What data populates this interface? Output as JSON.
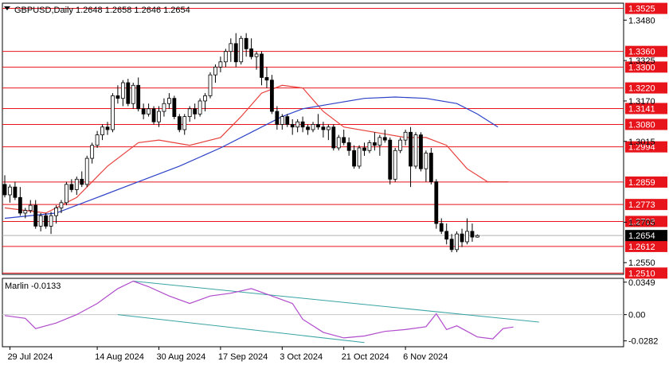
{
  "chart_data": {
    "type": "candlestick",
    "symbol_line": "GBPUSD,Daily  1.2648 1.2658 1.2646 1.2654",
    "current_price": 1.2654,
    "price_axis": {
      "ylim": [
        1.2505,
        1.3545
      ],
      "tick_labels": [
        {
          "value": 1.348,
          "label": "1.3480"
        },
        {
          "value": 1.3325,
          "label": "1.3325"
        },
        {
          "value": 1.317,
          "label": "1.3170"
        },
        {
          "value": 1.3015,
          "label": "1.3015"
        },
        {
          "value": 1.2705,
          "label": "1.2705"
        },
        {
          "value": 1.255,
          "label": "1.2550"
        }
      ]
    },
    "levels": [
      {
        "value": 1.3525,
        "label": "1.3525"
      },
      {
        "value": 1.336,
        "label": "1.3360"
      },
      {
        "value": 1.33,
        "label": "1.3300"
      },
      {
        "value": 1.322,
        "label": "1.3220"
      },
      {
        "value": 1.3141,
        "label": "1.3141"
      },
      {
        "value": 1.308,
        "label": "1.3080"
      },
      {
        "value": 1.2994,
        "label": "1.2994"
      },
      {
        "value": 1.2859,
        "label": "1.2859"
      },
      {
        "value": 1.2773,
        "label": "1.2773"
      },
      {
        "value": 1.2708,
        "label": "1.2708"
      },
      {
        "value": 1.2612,
        "label": "1.2612"
      },
      {
        "value": 1.251,
        "label": "1.2510"
      }
    ],
    "candles": [
      [
        1.285,
        1.2885,
        1.28,
        1.281
      ],
      [
        1.281,
        1.285,
        1.278,
        1.284
      ],
      [
        1.284,
        1.286,
        1.279,
        1.28
      ],
      [
        1.28,
        1.284,
        1.273,
        1.274
      ],
      [
        1.274,
        1.276,
        1.272,
        1.275
      ],
      [
        1.275,
        1.279,
        1.274,
        1.277
      ],
      [
        1.277,
        1.279,
        1.268,
        1.269
      ],
      [
        1.269,
        1.274,
        1.267,
        1.273
      ],
      [
        1.273,
        1.274,
        1.268,
        1.269
      ],
      [
        1.269,
        1.2745,
        1.266,
        1.273
      ],
      [
        1.273,
        1.277,
        1.27,
        1.276
      ],
      [
        1.276,
        1.279,
        1.274,
        1.278
      ],
      [
        1.278,
        1.286,
        1.277,
        1.285
      ],
      [
        1.285,
        1.287,
        1.282,
        1.283
      ],
      [
        1.283,
        1.288,
        1.281,
        1.287
      ],
      [
        1.287,
        1.29,
        1.284,
        1.285
      ],
      [
        1.285,
        1.296,
        1.284,
        1.295
      ],
      [
        1.295,
        1.301,
        1.293,
        1.3
      ],
      [
        1.3,
        1.3055,
        1.299,
        1.304
      ],
      [
        1.304,
        1.308,
        1.302,
        1.307
      ],
      [
        1.307,
        1.309,
        1.304,
        1.306
      ],
      [
        1.306,
        1.32,
        1.305,
        1.319
      ],
      [
        1.319,
        1.323,
        1.316,
        1.318
      ],
      [
        1.318,
        1.325,
        1.315,
        1.324
      ],
      [
        1.324,
        1.3255,
        1.315,
        1.316
      ],
      [
        1.316,
        1.324,
        1.314,
        1.323
      ],
      [
        1.323,
        1.326,
        1.313,
        1.314
      ],
      [
        1.314,
        1.316,
        1.31,
        1.312
      ],
      [
        1.312,
        1.316,
        1.311,
        1.314
      ],
      [
        1.314,
        1.315,
        1.308,
        1.309
      ],
      [
        1.309,
        1.315,
        1.307,
        1.313
      ],
      [
        1.313,
        1.318,
        1.311,
        1.316
      ],
      [
        1.316,
        1.32,
        1.314,
        1.318
      ],
      [
        1.318,
        1.319,
        1.31,
        1.311
      ],
      [
        1.311,
        1.312,
        1.305,
        1.306
      ],
      [
        1.306,
        1.312,
        1.304,
        1.311
      ],
      [
        1.311,
        1.315,
        1.309,
        1.314
      ],
      [
        1.314,
        1.316,
        1.31,
        1.312
      ],
      [
        1.312,
        1.318,
        1.311,
        1.317
      ],
      [
        1.317,
        1.32,
        1.313,
        1.319
      ],
      [
        1.319,
        1.328,
        1.318,
        1.327
      ],
      [
        1.327,
        1.331,
        1.324,
        1.33
      ],
      [
        1.33,
        1.334,
        1.328,
        1.332
      ],
      [
        1.332,
        1.337,
        1.33,
        1.336
      ],
      [
        1.336,
        1.341,
        1.332,
        1.339
      ],
      [
        1.339,
        1.343,
        1.33,
        1.332
      ],
      [
        1.332,
        1.342,
        1.331,
        1.341
      ],
      [
        1.341,
        1.343,
        1.334,
        1.337
      ],
      [
        1.337,
        1.341,
        1.333,
        1.334
      ],
      [
        1.334,
        1.336,
        1.329,
        1.335
      ],
      [
        1.335,
        1.336,
        1.323,
        1.326
      ],
      [
        1.326,
        1.33,
        1.322,
        1.325
      ],
      [
        1.325,
        1.327,
        1.312,
        1.313
      ],
      [
        1.313,
        1.315,
        1.306,
        1.308
      ],
      [
        1.308,
        1.312,
        1.306,
        1.311
      ],
      [
        1.311,
        1.312,
        1.307,
        1.308
      ],
      [
        1.308,
        1.31,
        1.304,
        1.307
      ],
      [
        1.307,
        1.31,
        1.305,
        1.309
      ],
      [
        1.309,
        1.311,
        1.305,
        1.307
      ],
      [
        1.307,
        1.308,
        1.304,
        1.306
      ],
      [
        1.306,
        1.309,
        1.305,
        1.308
      ],
      [
        1.308,
        1.312,
        1.306,
        1.307
      ],
      [
        1.307,
        1.309,
        1.303,
        1.306
      ],
      [
        1.306,
        1.308,
        1.302,
        1.307
      ],
      [
        1.307,
        1.308,
        1.298,
        1.299
      ],
      [
        1.299,
        1.304,
        1.298,
        1.303
      ],
      [
        1.303,
        1.306,
        1.3,
        1.301
      ],
      [
        1.301,
        1.303,
        1.296,
        1.298
      ],
      [
        1.298,
        1.3,
        1.291,
        1.292
      ],
      [
        1.292,
        1.3,
        1.291,
        1.299
      ],
      [
        1.299,
        1.301,
        1.296,
        1.298
      ],
      [
        1.298,
        1.302,
        1.297,
        1.301
      ],
      [
        1.301,
        1.305,
        1.298,
        1.3
      ],
      [
        1.3,
        1.304,
        1.296,
        1.303
      ],
      [
        1.303,
        1.306,
        1.301,
        1.302
      ],
      [
        1.302,
        1.303,
        1.285,
        1.287
      ],
      [
        1.287,
        1.299,
        1.286,
        1.298
      ],
      [
        1.298,
        1.303,
        1.297,
        1.302
      ],
      [
        1.302,
        1.306,
        1.3,
        1.305
      ],
      [
        1.305,
        1.307,
        1.284,
        1.292
      ],
      [
        1.292,
        1.305,
        1.291,
        1.304
      ],
      [
        1.304,
        1.305,
        1.29,
        1.291
      ],
      [
        1.291,
        1.298,
        1.286,
        1.297
      ],
      [
        1.297,
        1.299,
        1.285,
        1.286
      ],
      [
        1.286,
        1.287,
        1.268,
        1.27
      ],
      [
        1.27,
        1.272,
        1.266,
        1.267
      ],
      [
        1.267,
        1.27,
        1.262,
        1.264
      ],
      [
        1.264,
        1.266,
        1.259,
        1.26
      ],
      [
        1.26,
        1.267,
        1.259,
        1.266
      ],
      [
        1.266,
        1.268,
        1.261,
        1.263
      ],
      [
        1.263,
        1.272,
        1.262,
        1.267
      ],
      [
        1.267,
        1.27,
        1.263,
        1.2648
      ],
      [
        1.2648,
        1.2658,
        1.2646,
        1.2654
      ]
    ],
    "moving_averages": [
      {
        "color": "#e8413c",
        "values": [
          [
            0,
            1.276
          ],
          [
            8,
            1.274
          ],
          [
            14,
            1.28
          ],
          [
            20,
            1.292
          ],
          [
            26,
            1.301
          ],
          [
            30,
            1.302
          ],
          [
            36,
            1.3
          ],
          [
            42,
            1.303
          ],
          [
            46,
            1.311
          ],
          [
            50,
            1.32
          ],
          [
            54,
            1.323
          ],
          [
            58,
            1.322
          ],
          [
            62,
            1.313
          ],
          [
            66,
            1.307
          ],
          [
            72,
            1.305
          ],
          [
            78,
            1.303
          ],
          [
            82,
            1.303
          ],
          [
            86,
            1.3
          ],
          [
            90,
            1.291
          ],
          [
            94,
            1.286
          ],
          [
            98,
            1.286
          ]
        ]
      },
      {
        "color": "#2d42c8",
        "values": [
          [
            0,
            1.272
          ],
          [
            10,
            1.274
          ],
          [
            18,
            1.28
          ],
          [
            26,
            1.286
          ],
          [
            34,
            1.292
          ],
          [
            42,
            1.299
          ],
          [
            48,
            1.305
          ],
          [
            54,
            1.311
          ],
          [
            58,
            1.314
          ],
          [
            64,
            1.316
          ],
          [
            70,
            1.318
          ],
          [
            76,
            1.3185
          ],
          [
            82,
            1.318
          ],
          [
            88,
            1.316
          ],
          [
            92,
            1.312
          ],
          [
            96,
            1.307
          ]
        ]
      }
    ],
    "oscillator": {
      "title": "Marlin -0.0133",
      "ylim": [
        -0.0345,
        0.039
      ],
      "tick_labels": [
        {
          "value": 0.0349,
          "label": "0.0349"
        },
        {
          "value": 0.0,
          "label": "0.00"
        },
        {
          "value": -0.0282,
          "label": "-0.0282"
        }
      ],
      "color": "#b04bcc",
      "values": [
        [
          0,
          -0.001
        ],
        [
          4,
          -0.004
        ],
        [
          6,
          -0.015
        ],
        [
          10,
          -0.009
        ],
        [
          14,
          0.0
        ],
        [
          18,
          0.012
        ],
        [
          22,
          0.028
        ],
        [
          25,
          0.036
        ],
        [
          28,
          0.03
        ],
        [
          32,
          0.02
        ],
        [
          36,
          0.012
        ],
        [
          40,
          0.02
        ],
        [
          44,
          0.023
        ],
        [
          48,
          0.028
        ],
        [
          52,
          0.02
        ],
        [
          56,
          0.012
        ],
        [
          58,
          -0.005
        ],
        [
          62,
          -0.019
        ],
        [
          66,
          -0.025
        ],
        [
          70,
          -0.023
        ],
        [
          74,
          -0.018
        ],
        [
          78,
          -0.016
        ],
        [
          82,
          -0.013
        ],
        [
          84,
          0.001
        ],
        [
          86,
          -0.016
        ],
        [
          88,
          -0.012
        ],
        [
          92,
          -0.024
        ],
        [
          95,
          -0.026
        ],
        [
          97,
          -0.015
        ],
        [
          99,
          -0.0133
        ]
      ],
      "trendlines": [
        {
          "from": [
            25,
            0.036
          ],
          "to": [
            104,
            -0.008
          ]
        },
        {
          "from": [
            22,
            0.0
          ],
          "to": [
            70,
            -0.03
          ]
        }
      ]
    },
    "x_axis": {
      "tick_labels": [
        {
          "index": 1,
          "label": "29 Jul 2024"
        },
        {
          "index": 18,
          "label": "14 Aug 2024"
        },
        {
          "index": 30,
          "label": "30 Aug 2024"
        },
        {
          "index": 42,
          "label": "17 Sep 2024"
        },
        {
          "index": 54,
          "label": "3 Oct 2024"
        },
        {
          "index": 66,
          "label": "21 Oct 2024"
        },
        {
          "index": 78,
          "label": "6 Nov 2024"
        }
      ]
    },
    "colors": {
      "up": "#ffffff",
      "down": "#000000",
      "level": "#e8141b",
      "trend": "#3aa3a3"
    }
  }
}
